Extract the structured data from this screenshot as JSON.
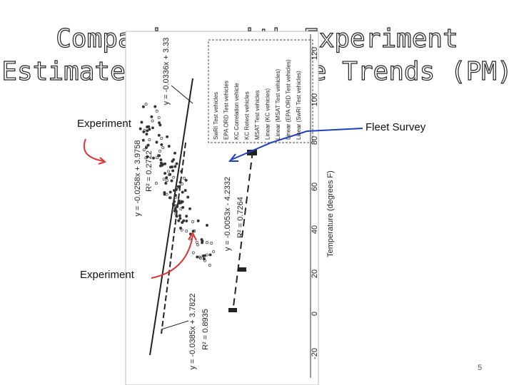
{
  "slide": {
    "title_lines": [
      "Comparison with Experiment",
      "Estimated Temperature Trends (PM)"
    ],
    "labels": {
      "experiment_top": "Experiment",
      "fleet_survey": "Fleet Survey",
      "experiment_bottom": "Experiment"
    },
    "page_number": "5",
    "scan": {
      "axis_label": "Temperature (degrees F)",
      "temperature_ticks": [
        "120",
        "100",
        "80",
        "60",
        "40",
        "20",
        "0",
        "-20"
      ],
      "equations": [
        "y = -0.0336x + 3.33",
        "y = -0.0258x + 3.9758",
        "R² = 0.2722",
        "y = -0.0053x - 4.2332",
        "R² = 0.7264",
        "y = -0.0385x + 3.7822",
        "R² = 0.8935"
      ],
      "legend": [
        "SwRI Test vehicles",
        "EPA ORD Test vehicles",
        "KC Correlation vehicle",
        "KC Retest vehicles",
        "MSAT Test vehicles",
        "Linear (KC vehicles)",
        "Linear (MSAT Test vehicles)",
        "Linear (EPA ORD Test vehicles)",
        "Linear (SwRI Test vehicles)"
      ]
    }
  }
}
